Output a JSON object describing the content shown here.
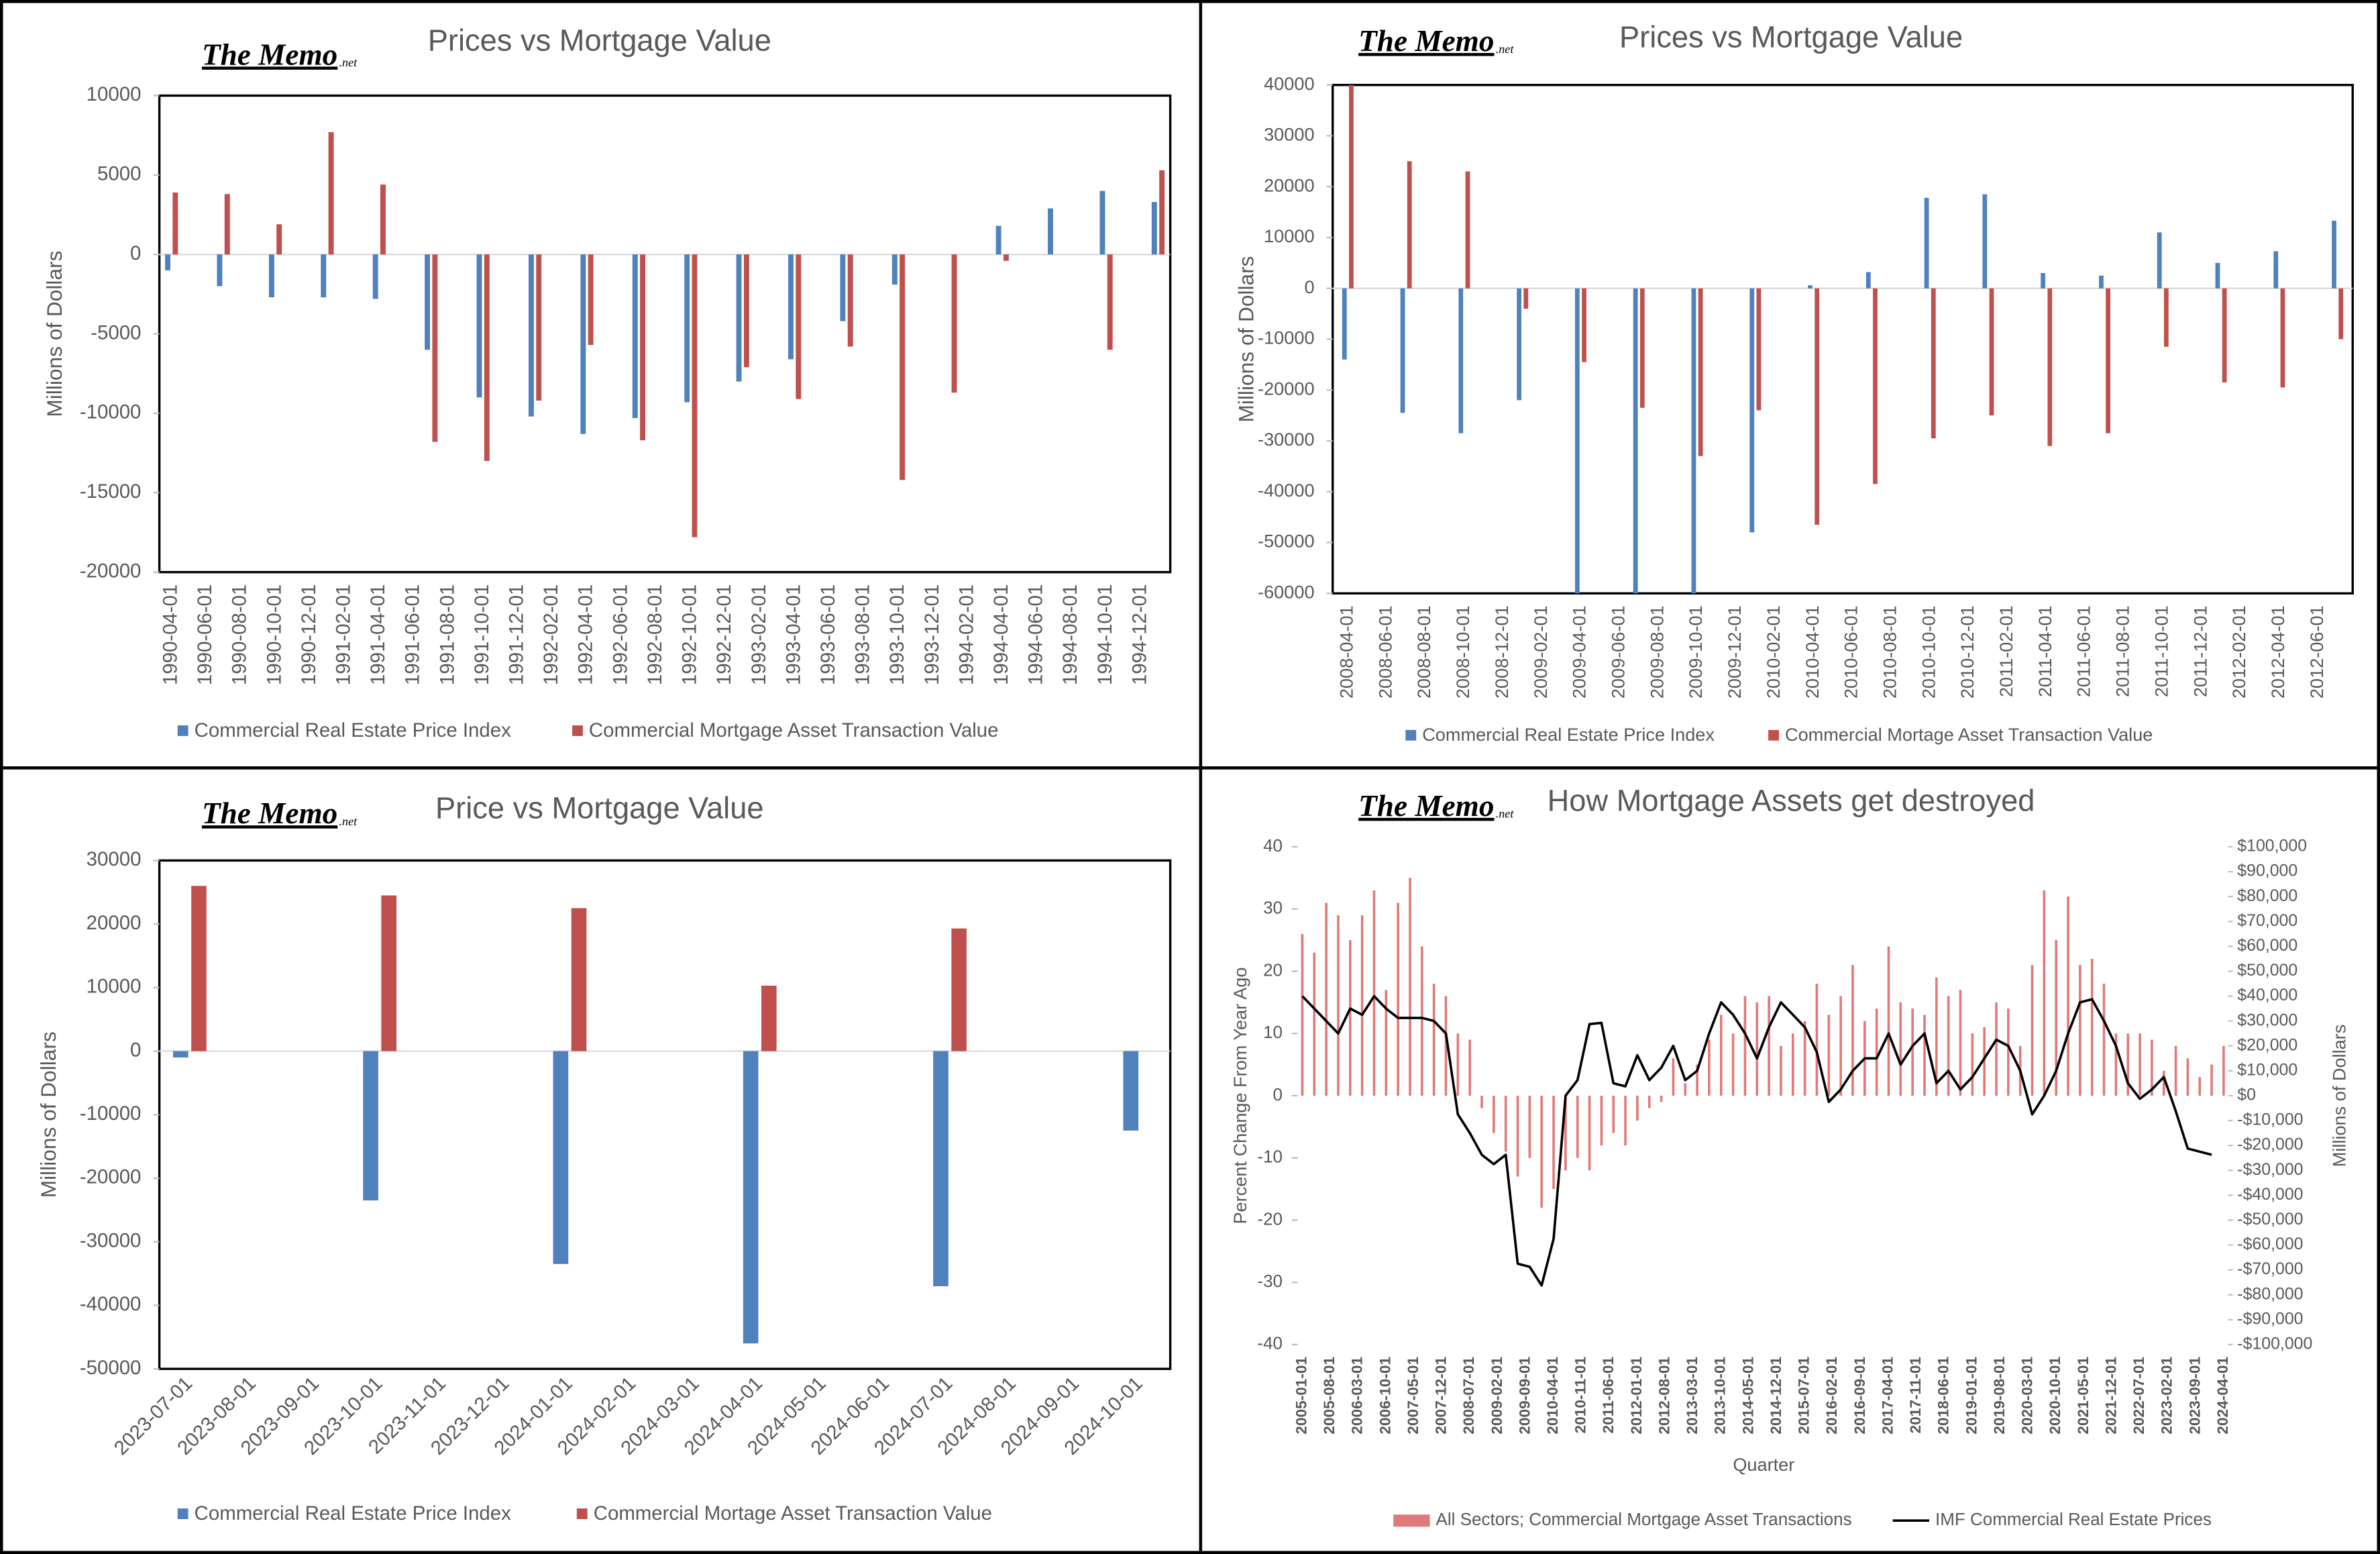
{
  "brand": "The Memo",
  "brand_suffix": ".net",
  "chart_data": [
    {
      "type": "bar",
      "title": "Prices vs Mortgage Value",
      "y_label": "Millions of Dollars",
      "x": [
        "1990-04-01",
        "1990-07-01",
        "1990-10-01",
        "1991-01-01",
        "1991-04-01",
        "1991-07-01",
        "1991-10-01",
        "1992-01-01",
        "1992-04-01",
        "1992-07-01",
        "1992-10-01",
        "1993-01-01",
        "1993-04-01",
        "1993-07-01",
        "1993-10-01",
        "1994-01-01",
        "1994-04-01",
        "1994-07-01",
        "1994-10-01",
        "1995-01-01"
      ],
      "xlim": [
        "1990-04-01",
        "1995-01-01"
      ],
      "xticks": [
        "1990-04-01",
        "1990-06-01",
        "1990-08-01",
        "1990-10-01",
        "1990-12-01",
        "1991-02-01",
        "1991-04-01",
        "1991-06-01",
        "1991-08-01",
        "1991-10-01",
        "1991-12-01",
        "1992-02-01",
        "1992-04-01",
        "1992-06-01",
        "1992-08-01",
        "1992-10-01",
        "1992-12-01",
        "1993-02-01",
        "1993-04-01",
        "1993-06-01",
        "1993-08-01",
        "1993-10-01",
        "1993-12-01",
        "1994-02-01",
        "1994-04-01",
        "1994-06-01",
        "1994-08-01",
        "1994-10-01",
        "1994-12-01"
      ],
      "ylim": [
        -20000,
        10000
      ],
      "yticks": [
        -20000,
        -15000,
        -10000,
        -5000,
        0,
        5000,
        10000
      ],
      "series": [
        {
          "name": "Commercial Real Estate Price Index",
          "color": "#4f81bd",
          "values": [
            -1000,
            -2000,
            -2700,
            -2700,
            -2800,
            -6000,
            -9000,
            -10200,
            -11300,
            -10300,
            -9300,
            -8000,
            -6600,
            -4200,
            -1900,
            null,
            1800,
            2900,
            4000,
            3300
          ]
        },
        {
          "name": "Commercial Mortgage Asset Transaction Value",
          "color": "#c0504d",
          "values": [
            3900,
            3800,
            1900,
            7700,
            4400,
            -11800,
            -13000,
            -9200,
            -5700,
            -11700,
            -17800,
            -7100,
            -9100,
            -5800,
            -14200,
            -8700,
            -400,
            null,
            -6000,
            5300
          ]
        }
      ]
    },
    {
      "type": "bar",
      "title": "Prices vs Mortgage Value",
      "y_label": "Millions of Dollars",
      "x": [
        "2008-04-01",
        "2008-07-01",
        "2008-10-01",
        "2009-01-01",
        "2009-04-01",
        "2009-07-01",
        "2009-10-01",
        "2010-01-01",
        "2010-04-01",
        "2010-07-01",
        "2010-10-01",
        "2011-01-01",
        "2011-04-01",
        "2011-07-01",
        "2011-10-01",
        "2012-01-01",
        "2012-04-01",
        "2012-07-01"
      ],
      "xlim": [
        "2008-04-01",
        "2012-07-01"
      ],
      "xticks": [
        "2008-04-01",
        "2008-06-01",
        "2008-08-01",
        "2008-10-01",
        "2008-12-01",
        "2009-02-01",
        "2009-04-01",
        "2009-06-01",
        "2009-08-01",
        "2009-10-01",
        "2009-12-01",
        "2010-02-01",
        "2010-04-01",
        "2010-06-01",
        "2010-08-01",
        "2010-10-01",
        "2010-12-01",
        "2011-02-01",
        "2011-04-01",
        "2011-06-01",
        "2011-08-01",
        "2011-10-01",
        "2011-12-01",
        "2012-02-01",
        "2012-04-01",
        "2012-06-01"
      ],
      "ylim": [
        -60000,
        40000
      ],
      "yticks": [
        -60000,
        -50000,
        -40000,
        -30000,
        -20000,
        -10000,
        0,
        10000,
        20000,
        30000,
        40000
      ],
      "series": [
        {
          "name": "Commercial Real Estate Price Index",
          "color": "#4f81bd",
          "values": [
            -14000,
            -24500,
            -28500,
            -22000,
            -60000,
            -60000,
            -60000,
            -48000,
            600,
            3200,
            17800,
            18500,
            3000,
            2500,
            11000,
            5000,
            7300,
            13300
          ]
        },
        {
          "name": "Commercial Mortage Asset Transaction Value",
          "color": "#c0504d",
          "values": [
            40000,
            25000,
            23000,
            -4000,
            -14500,
            -23500,
            -33000,
            -24000,
            -46500,
            -38500,
            -29500,
            -25000,
            -31000,
            -28500,
            -11500,
            -18500,
            -19500,
            -10000
          ]
        }
      ]
    },
    {
      "type": "bar",
      "title": "Price vs Mortgage Value",
      "y_label": "Millions of Dollars",
      "x": [
        "2023-07-01",
        "2023-10-01",
        "2024-01-01",
        "2024-04-01",
        "2024-07-01",
        "2024-10-01"
      ],
      "xlim": [
        "2023-07-01",
        "2024-10-01"
      ],
      "xticks": [
        "2023-07-01",
        "2023-08-01",
        "2023-09-01",
        "2023-10-01",
        "2023-11-01",
        "2023-12-01",
        "2024-01-01",
        "2024-02-01",
        "2024-03-01",
        "2024-04-01",
        "2024-05-01",
        "2024-06-01",
        "2024-07-01",
        "2024-08-01",
        "2024-09-01",
        "2024-10-01"
      ],
      "ylim": [
        -50000,
        30000
      ],
      "yticks": [
        -50000,
        -40000,
        -30000,
        -20000,
        -10000,
        0,
        10000,
        20000,
        30000
      ],
      "series": [
        {
          "name": "Commercial Real Estate Price Index",
          "color": "#4f81bd",
          "values": [
            -1000,
            -23500,
            -33500,
            -46000,
            -37000,
            -12500
          ]
        },
        {
          "name": "Commercial Mortage Asset Transaction Value",
          "color": "#c0504d",
          "values": [
            26000,
            24500,
            22500,
            10300,
            19300,
            null
          ]
        }
      ]
    },
    {
      "type": "combo",
      "title": "How Mortgage Assets get destroyed",
      "y_label": "Percent Change From Year Ago",
      "y2_label": "Millions of Dollars",
      "x_label": "Quarter",
      "x": [
        "2005-01-01",
        "2005-04-01",
        "2005-07-01",
        "2005-10-01",
        "2006-01-01",
        "2006-04-01",
        "2006-07-01",
        "2006-10-01",
        "2007-01-01",
        "2007-04-01",
        "2007-07-01",
        "2007-10-01",
        "2008-01-01",
        "2008-04-01",
        "2008-07-01",
        "2008-10-01",
        "2009-01-01",
        "2009-04-01",
        "2009-07-01",
        "2009-10-01",
        "2010-01-01",
        "2010-04-01",
        "2010-07-01",
        "2010-10-01",
        "2011-01-01",
        "2011-04-01",
        "2011-07-01",
        "2011-10-01",
        "2012-01-01",
        "2012-04-01",
        "2012-07-01",
        "2012-10-01",
        "2013-01-01",
        "2013-04-01",
        "2013-07-01",
        "2013-10-01",
        "2014-01-01",
        "2014-04-01",
        "2014-07-01",
        "2014-10-01",
        "2015-01-01",
        "2015-04-01",
        "2015-07-01",
        "2015-10-01",
        "2016-01-01",
        "2016-04-01",
        "2016-07-01",
        "2016-10-01",
        "2017-01-01",
        "2017-04-01",
        "2017-07-01",
        "2017-10-01",
        "2018-01-01",
        "2018-04-01",
        "2018-07-01",
        "2018-10-01",
        "2019-01-01",
        "2019-04-01",
        "2019-07-01",
        "2019-10-01",
        "2020-01-01",
        "2020-04-01",
        "2020-07-01",
        "2020-10-01",
        "2021-01-01",
        "2021-04-01",
        "2021-07-01",
        "2021-10-01",
        "2022-01-01",
        "2022-04-01",
        "2022-07-01",
        "2022-10-01",
        "2023-01-01",
        "2023-04-01",
        "2023-07-01",
        "2023-10-01",
        "2024-01-01",
        "2024-04-01"
      ],
      "xlim": [
        "2005-01-01",
        "2024-04-01"
      ],
      "xticks": [
        "2005-01-01",
        "2005-08-01",
        "2006-03-01",
        "2006-10-01",
        "2007-05-01",
        "2007-12-01",
        "2008-07-01",
        "2009-02-01",
        "2009-09-01",
        "2010-04-01",
        "2010-11-01",
        "2011-06-01",
        "2012-01-01",
        "2012-08-01",
        "2013-03-01",
        "2013-10-01",
        "2014-05-01",
        "2014-12-01",
        "2015-07-01",
        "2016-02-01",
        "2016-09-01",
        "2017-04-01",
        "2017-11-01",
        "2018-06-01",
        "2019-01-01",
        "2019-08-01",
        "2020-03-01",
        "2020-10-01",
        "2021-05-01",
        "2021-12-01",
        "2022-07-01",
        "2023-02-01",
        "2023-09-01",
        "2024-04-01"
      ],
      "ylim": [
        -40,
        40
      ],
      "yticks": [
        -40,
        -30,
        -20,
        -10,
        0,
        10,
        20,
        30,
        40
      ],
      "y2lim": [
        -100000,
        100000
      ],
      "y2ticks": [
        {
          "value": -100000,
          "label": "-$100,000"
        },
        {
          "value": -90000,
          "label": "-$90,000"
        },
        {
          "value": -80000,
          "label": "-$80,000"
        },
        {
          "value": -70000,
          "label": "-$70,000"
        },
        {
          "value": -60000,
          "label": "-$60,000"
        },
        {
          "value": -50000,
          "label": "-$50,000"
        },
        {
          "value": -40000,
          "label": "-$40,000"
        },
        {
          "value": -30000,
          "label": "-$30,000"
        },
        {
          "value": -20000,
          "label": "-$20,000"
        },
        {
          "value": -10000,
          "label": "-$10,000"
        },
        {
          "value": 0,
          "label": "$0"
        },
        {
          "value": 10000,
          "label": "$10,000"
        },
        {
          "value": 20000,
          "label": "$20,000"
        },
        {
          "value": 30000,
          "label": "$30,000"
        },
        {
          "value": 40000,
          "label": "$40,000"
        },
        {
          "value": 50000,
          "label": "$50,000"
        },
        {
          "value": 60000,
          "label": "$60,000"
        },
        {
          "value": 70000,
          "label": "$70,000"
        },
        {
          "value": 80000,
          "label": "$80,000"
        },
        {
          "value": 90000,
          "label": "$90,000"
        },
        {
          "value": 100000,
          "label": "$100,000"
        }
      ],
      "series": [
        {
          "name": "All Sectors; Commercial Mortgage Asset Transactions",
          "type": "bar",
          "axis": "y2",
          "color": "#e07a7a",
          "values": [
            65000,
            57500,
            77500,
            72500,
            62500,
            72500,
            82500,
            42500,
            77500,
            87500,
            60000,
            45000,
            40000,
            25000,
            22500,
            -5000,
            -15000,
            -22500,
            -32500,
            -25000,
            -45000,
            -37500,
            -30000,
            -25000,
            -30000,
            -20000,
            -15000,
            -20000,
            -10000,
            -5000,
            -2500,
            15000,
            5000,
            12500,
            22500,
            32500,
            25000,
            40000,
            37500,
            40000,
            20000,
            25000,
            30000,
            45000,
            32500,
            40000,
            52500,
            30000,
            35000,
            60000,
            37500,
            35000,
            32500,
            47500,
            40000,
            42500,
            25000,
            27500,
            37500,
            35000,
            20000,
            52500,
            82500,
            62500,
            80000,
            52500,
            55000,
            45000,
            25000,
            25000,
            25000,
            22500,
            10000,
            20000,
            15000,
            7500,
            12500,
            20000
          ]
        },
        {
          "name": "IMF Commercial Real Estate Prices",
          "type": "line",
          "color": "#000000",
          "values": [
            16,
            14,
            12,
            10,
            14,
            13,
            16,
            14,
            12.5,
            12.5,
            12.5,
            12,
            10,
            -3,
            -6,
            -9.5,
            -11,
            -9.5,
            -27,
            -27.5,
            -30.5,
            -23,
            0,
            2.5,
            11.5,
            11.7,
            2,
            1.5,
            6.5,
            2.5,
            4.5,
            8,
            2.5,
            4,
            10,
            15,
            13,
            10,
            6,
            11,
            15,
            13,
            11,
            7,
            -1,
            1,
            4,
            6,
            6,
            10,
            5,
            8,
            10,
            2,
            4,
            1,
            3,
            6,
            9,
            8,
            4,
            -3,
            0,
            4,
            10,
            15,
            15.5,
            12,
            8,
            2,
            -0.5,
            1,
            3,
            -2.5,
            -8.5,
            -9,
            -9.5,
            null
          ]
        }
      ]
    }
  ]
}
